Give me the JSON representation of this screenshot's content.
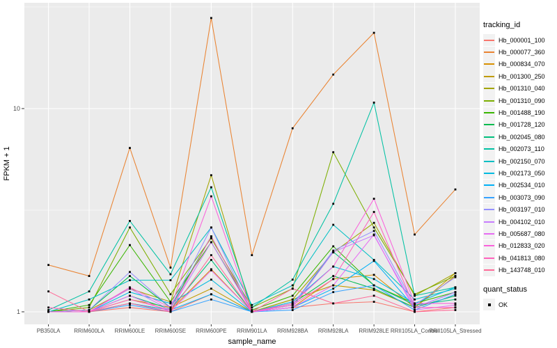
{
  "figure": {
    "background": "#FFFFFF",
    "panel_background": "#EBEBEB",
    "grid_color": "#FFFFFF",
    "tick_mark_color": "#333333",
    "tick_label_color": "#4D4D4D",
    "point_color": "#000000"
  },
  "chart_data": {
    "type": "line",
    "title": "",
    "xlabel": "sample_name",
    "ylabel": "FPKM + 1",
    "y_scale": "log10",
    "ylim": [
      0.87,
      33
    ],
    "y_major_ticks": [
      1,
      10
    ],
    "y_minor_ticks": [
      3.162,
      31.62
    ],
    "grid": "on",
    "legend_position": "right",
    "point_shape": "filled-square",
    "categories": [
      "PB350LA",
      "RRIM600LA",
      "RRIM600LE",
      "RRIM600SE",
      "RRIM600PE",
      "RRIM901LA",
      "RRIM928BA",
      "RRIM928LA",
      "RRIM928LE",
      "RRII105LA_Control",
      "RRII105LA_Stressed"
    ],
    "color_legend_title": "tracking_id",
    "shape_legend_title": "quant_status",
    "shape_legend_items": [
      "OK"
    ],
    "series": [
      {
        "name": "Hb_000001_100",
        "color": "#F8766D",
        "values": [
          1.0,
          1.0,
          1.05,
          1.0,
          1.22,
          1.0,
          1.05,
          1.1,
          1.12,
          1.0,
          1.05
        ]
      },
      {
        "name": "Hb_000077_360",
        "color": "#EA8331",
        "values": [
          1.7,
          1.5,
          6.4,
          1.65,
          27.9,
          1.9,
          8.0,
          14.7,
          23.6,
          2.4,
          4.0
        ]
      },
      {
        "name": "Hb_000834_070",
        "color": "#D89000",
        "values": [
          1.0,
          1.0,
          1.1,
          1.02,
          1.62,
          1.0,
          1.05,
          1.45,
          1.52,
          1.05,
          1.5
        ]
      },
      {
        "name": "Hb_001300_250",
        "color": "#C09B00",
        "values": [
          1.0,
          1.0,
          1.15,
          1.05,
          1.3,
          1.0,
          1.15,
          1.35,
          1.28,
          1.05,
          1.55
        ]
      },
      {
        "name": "Hb_001310_040",
        "color": "#A3A500",
        "values": [
          1.0,
          1.02,
          1.3,
          1.12,
          4.7,
          1.0,
          1.15,
          1.96,
          2.74,
          1.2,
          1.55
        ]
      },
      {
        "name": "Hb_001310_090",
        "color": "#7CAE00",
        "values": [
          1.0,
          1.05,
          2.6,
          1.22,
          2.3,
          1.05,
          1.3,
          6.1,
          2.6,
          1.22,
          1.5
        ]
      },
      {
        "name": "Hb_001488_190",
        "color": "#39B600",
        "values": [
          1.0,
          1.08,
          2.13,
          1.12,
          2.2,
          1.02,
          1.2,
          2.1,
          1.35,
          1.1,
          1.25
        ]
      },
      {
        "name": "Hb_001728_120",
        "color": "#00BB4E",
        "values": [
          1.0,
          1.02,
          1.5,
          1.05,
          2.35,
          1.0,
          1.1,
          1.5,
          1.3,
          1.05,
          1.2
        ]
      },
      {
        "name": "Hb_002045_080",
        "color": "#00BF7D",
        "values": [
          1.0,
          1.0,
          1.2,
          1.03,
          1.8,
          1.0,
          1.08,
          1.97,
          1.35,
          1.08,
          1.15
        ]
      },
      {
        "name": "Hb_002073_110",
        "color": "#00C1A3",
        "values": [
          1.02,
          1.26,
          2.8,
          1.53,
          4.1,
          1.05,
          1.44,
          3.4,
          10.7,
          1.2,
          1.32
        ]
      },
      {
        "name": "Hb_002150_070",
        "color": "#00BFC4",
        "values": [
          1.0,
          1.15,
          1.43,
          1.43,
          2.6,
          1.08,
          1.35,
          2.68,
          1.8,
          1.15,
          1.3
        ]
      },
      {
        "name": "Hb_002173_050",
        "color": "#00BAE0",
        "values": [
          1.0,
          1.0,
          1.25,
          1.1,
          1.44,
          1.0,
          1.12,
          1.67,
          1.45,
          1.1,
          1.32
        ]
      },
      {
        "name": "Hb_002534_010",
        "color": "#00B0F6",
        "values": [
          1.0,
          1.0,
          1.1,
          1.02,
          1.22,
          1.0,
          1.05,
          1.3,
          1.78,
          1.05,
          1.25
        ]
      },
      {
        "name": "Hb_003073_090",
        "color": "#35A2FF",
        "values": [
          1.0,
          1.0,
          1.08,
          1.0,
          1.15,
          1.0,
          1.02,
          1.25,
          1.35,
          1.02,
          1.22
        ]
      },
      {
        "name": "Hb_003197_010",
        "color": "#9590FF",
        "values": [
          1.0,
          1.02,
          1.57,
          1.05,
          2.6,
          1.0,
          1.08,
          2.0,
          2.5,
          1.08,
          1.48
        ]
      },
      {
        "name": "Hb_004102_010",
        "color": "#C77CFF",
        "values": [
          1.0,
          1.0,
          1.3,
          1.02,
          2.2,
          1.0,
          1.05,
          1.97,
          2.38,
          1.05,
          1.25
        ]
      },
      {
        "name": "Hb_005687_080",
        "color": "#E76BF3",
        "values": [
          1.0,
          1.0,
          1.2,
          1.0,
          1.6,
          1.0,
          1.05,
          1.35,
          2.4,
          1.02,
          1.08
        ]
      },
      {
        "name": "Hb_012833_020",
        "color": "#FA62DB",
        "values": [
          1.0,
          1.0,
          1.32,
          1.05,
          3.7,
          1.0,
          1.1,
          1.67,
          3.6,
          1.1,
          1.1
        ]
      },
      {
        "name": "Hb_041813_080",
        "color": "#FF62BC",
        "values": [
          1.05,
          1.0,
          1.15,
          1.02,
          2.35,
          1.0,
          1.08,
          1.45,
          3.1,
          1.05,
          1.05
        ]
      },
      {
        "name": "Hb_143748_010",
        "color": "#FF6A98",
        "values": [
          1.26,
          1.0,
          1.1,
          1.0,
          1.9,
          1.0,
          1.3,
          1.1,
          1.2,
          1.0,
          1.02
        ]
      }
    ]
  }
}
